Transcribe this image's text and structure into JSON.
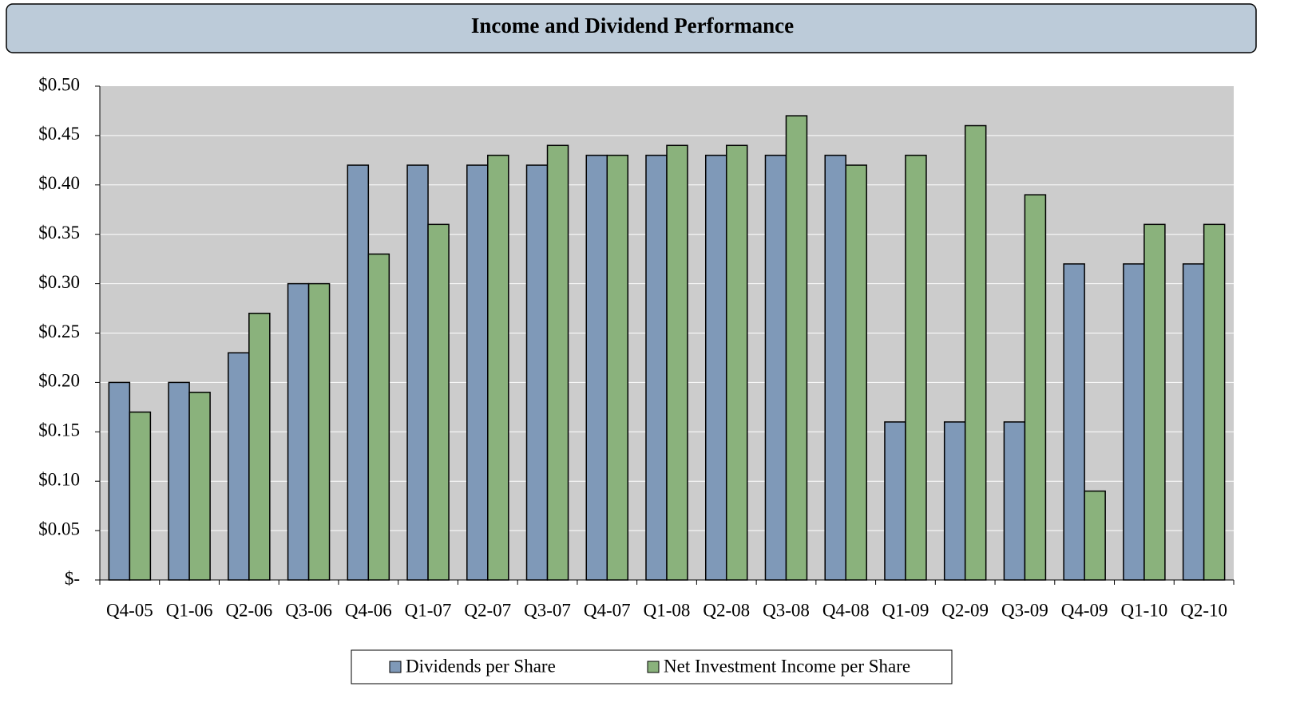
{
  "chart_data": {
    "type": "bar",
    "title": "Income and Dividend Performance",
    "categories": [
      "Q4-05",
      "Q1-06",
      "Q2-06",
      "Q3-06",
      "Q4-06",
      "Q1-07",
      "Q2-07",
      "Q3-07",
      "Q4-07",
      "Q1-08",
      "Q2-08",
      "Q3-08",
      "Q4-08",
      "Q1-09",
      "Q2-09",
      "Q3-09",
      "Q4-09",
      "Q1-10",
      "Q2-10"
    ],
    "series": [
      {
        "name": "Dividends per Share",
        "color": "#7f99b8",
        "values": [
          0.2,
          0.2,
          0.23,
          0.3,
          0.42,
          0.42,
          0.42,
          0.42,
          0.43,
          0.43,
          0.43,
          0.43,
          0.43,
          0.16,
          0.16,
          0.16,
          0.32,
          0.32,
          0.32
        ]
      },
      {
        "name": "Net Investment Income per Share",
        "color": "#8ab27c",
        "values": [
          0.17,
          0.19,
          0.27,
          0.3,
          0.33,
          0.36,
          0.43,
          0.44,
          0.43,
          0.44,
          0.44,
          0.47,
          0.42,
          0.43,
          0.46,
          0.39,
          0.09,
          0.36,
          0.36
        ]
      }
    ],
    "ylim": [
      0,
      0.5
    ],
    "yticks": [
      {
        "value": 0,
        "label": "$-"
      },
      {
        "value": 0.05,
        "label": "$0.05"
      },
      {
        "value": 0.1,
        "label": "$0.10"
      },
      {
        "value": 0.15,
        "label": "$0.15"
      },
      {
        "value": 0.2,
        "label": "$0.20"
      },
      {
        "value": 0.25,
        "label": "$0.25"
      },
      {
        "value": 0.3,
        "label": "$0.30"
      },
      {
        "value": 0.35,
        "label": "$0.35"
      },
      {
        "value": 0.4,
        "label": "$0.40"
      },
      {
        "value": 0.45,
        "label": "$0.45"
      },
      {
        "value": 0.5,
        "label": "$0.50"
      }
    ],
    "grid": true,
    "legend": "bottom"
  }
}
